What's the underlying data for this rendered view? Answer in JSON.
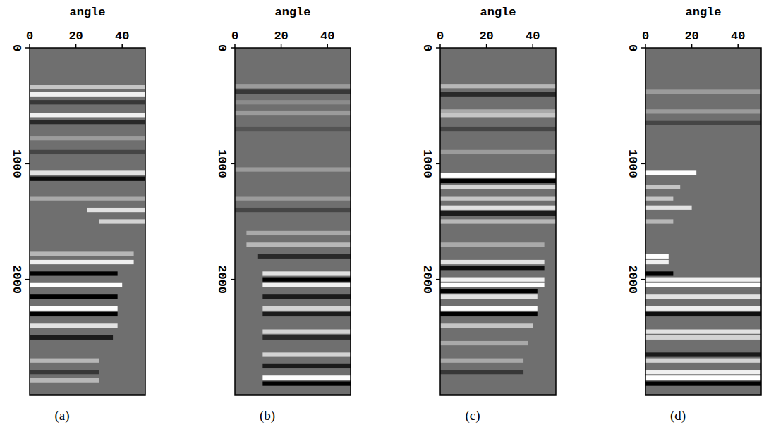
{
  "chart_data": [
    {
      "type": "gather",
      "panel_label": "(a)",
      "x_label": "angle",
      "xlim": [
        0,
        50
      ],
      "xticks": [
        0,
        20,
        40
      ],
      "ylim": [
        0,
        3000
      ],
      "yticks": [
        0,
        1000,
        2000
      ],
      "reflectors": {
        "depth": [
          340,
          400,
          470,
          580,
          640,
          780,
          900,
          1080,
          1130,
          1300,
          1400,
          1500,
          1780,
          1850,
          1950,
          2050,
          2150,
          2250,
          2300,
          2400,
          2500,
          2700,
          2800,
          2870
        ],
        "amplitude": [
          0.6,
          0.9,
          -0.4,
          0.9,
          -0.5,
          0.3,
          -0.3,
          0.8,
          -0.7,
          0.4,
          0.8,
          0.7,
          0.5,
          0.9,
          -0.8,
          1.0,
          -0.9,
          1.0,
          -0.9,
          0.8,
          -0.6,
          0.5,
          -0.4,
          0.5
        ],
        "angle_start": [
          0,
          0,
          0,
          0,
          0,
          0,
          0,
          0,
          0,
          0,
          25,
          30,
          0,
          0,
          0,
          0,
          0,
          0,
          0,
          0,
          0,
          0,
          0,
          0
        ],
        "angle_end": [
          50,
          50,
          50,
          50,
          50,
          50,
          50,
          50,
          50,
          50,
          50,
          50,
          45,
          45,
          38,
          40,
          38,
          38,
          38,
          38,
          36,
          30,
          30,
          30
        ]
      }
    },
    {
      "type": "gather",
      "panel_label": "(b)",
      "x_label": "angle",
      "xlim": [
        0,
        50
      ],
      "xticks": [
        0,
        20,
        40
      ],
      "ylim": [
        0,
        3000
      ],
      "yticks": [
        0,
        1000,
        2000
      ],
      "reflectors": {
        "depth": [
          330,
          380,
          470,
          560,
          700,
          1050,
          1300,
          1400,
          1600,
          1700,
          1800,
          1950,
          2000,
          2050,
          2150,
          2250,
          2300,
          2450,
          2500,
          2650,
          2750,
          2850,
          2900
        ],
        "amplitude": [
          0.3,
          -0.4,
          0.2,
          0.3,
          -0.2,
          0.3,
          0.3,
          -0.3,
          0.4,
          0.5,
          -0.5,
          0.8,
          -0.9,
          0.9,
          -0.6,
          0.7,
          -0.6,
          0.7,
          -0.5,
          0.7,
          -0.6,
          1.0,
          -0.9
        ],
        "angle_start": [
          0,
          0,
          0,
          0,
          0,
          0,
          0,
          0,
          5,
          5,
          10,
          12,
          12,
          12,
          12,
          12,
          12,
          12,
          12,
          12,
          12,
          12,
          12
        ],
        "angle_end": [
          50,
          50,
          50,
          50,
          50,
          50,
          50,
          50,
          50,
          50,
          50,
          50,
          50,
          50,
          50,
          50,
          50,
          50,
          50,
          50,
          50,
          50,
          50
        ]
      }
    },
    {
      "type": "gather",
      "panel_label": "(c)",
      "x_label": "angle",
      "xlim": [
        0,
        50
      ],
      "xticks": [
        0,
        20,
        40
      ],
      "ylim": [
        0,
        3000
      ],
      "yticks": [
        0,
        1000,
        2000
      ],
      "reflectors": {
        "depth": [
          330,
          400,
          550,
          580,
          700,
          900,
          1100,
          1150,
          1200,
          1300,
          1380,
          1430,
          1500,
          1700,
          1850,
          1900,
          2000,
          2050,
          2100,
          2150,
          2250,
          2300,
          2400,
          2550,
          2700,
          2800
        ],
        "amplitude": [
          0.5,
          -0.5,
          0.4,
          0.6,
          -0.3,
          0.3,
          1.0,
          -0.9,
          0.7,
          0.6,
          0.8,
          -0.6,
          0.5,
          0.4,
          0.8,
          -0.7,
          0.9,
          1.0,
          -0.9,
          0.8,
          1.0,
          -0.8,
          0.6,
          0.4,
          0.4,
          -0.4
        ],
        "angle_start": [
          0,
          0,
          0,
          0,
          0,
          0,
          0,
          0,
          0,
          0,
          0,
          0,
          0,
          0,
          0,
          0,
          0,
          0,
          0,
          0,
          0,
          0,
          0,
          0,
          0,
          0
        ],
        "angle_end": [
          50,
          50,
          50,
          50,
          50,
          50,
          50,
          50,
          50,
          50,
          50,
          50,
          50,
          45,
          45,
          45,
          45,
          45,
          42,
          42,
          42,
          42,
          40,
          38,
          36,
          36
        ]
      }
    },
    {
      "type": "gather",
      "panel_label": "(d)",
      "x_label": "angle",
      "xlim": [
        0,
        50
      ],
      "xticks": [
        0,
        20,
        40
      ],
      "ylim": [
        0,
        3000
      ],
      "yticks": [
        0,
        1000,
        2000
      ],
      "reflectors": {
        "depth": [
          380,
          550,
          650,
          1080,
          1200,
          1300,
          1380,
          1500,
          1800,
          1850,
          1950,
          2000,
          2050,
          2150,
          2250,
          2300,
          2450,
          2500,
          2650,
          2700,
          2800,
          2850,
          2900
        ],
        "amplitude": [
          0.3,
          0.3,
          -0.3,
          1.0,
          0.6,
          0.6,
          0.8,
          0.5,
          1.0,
          0.9,
          -0.8,
          0.9,
          1.0,
          0.8,
          0.9,
          -0.7,
          0.8,
          0.7,
          -0.6,
          0.7,
          0.9,
          1.0,
          -0.9
        ],
        "angle_start": [
          0,
          0,
          0,
          0,
          0,
          0,
          0,
          0,
          0,
          0,
          0,
          0,
          0,
          0,
          0,
          0,
          0,
          0,
          0,
          0,
          0,
          0,
          0
        ],
        "angle_end": [
          50,
          50,
          50,
          22,
          15,
          12,
          20,
          12,
          10,
          10,
          12,
          50,
          50,
          50,
          50,
          50,
          50,
          50,
          50,
          50,
          50,
          50,
          50
        ]
      }
    }
  ]
}
